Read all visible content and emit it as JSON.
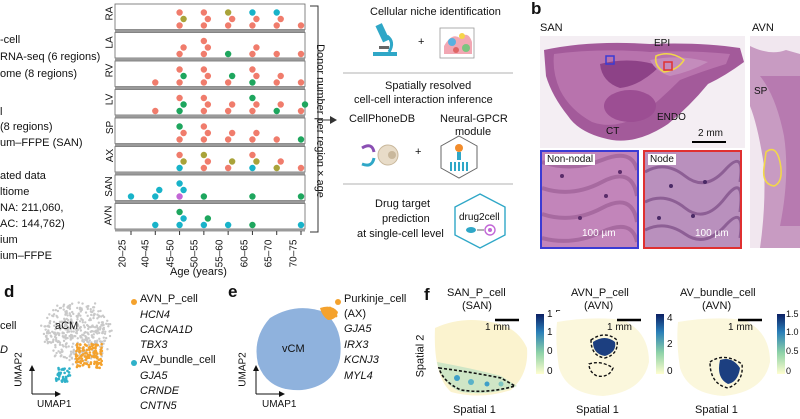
{
  "left_text": {
    "lines": [
      "-cell",
      "RNA-seq (6 regions)",
      "ome (8 regions)",
      "l",
      "(8 regions)",
      "um–FFPE (SAN)",
      "ated data",
      "ltiome",
      "NA: 211,060,",
      "AC: 144,762)",
      "ium",
      "ium–FFPE"
    ]
  },
  "panel_a": {
    "regions": [
      "RA",
      "LA",
      "RV",
      "LV",
      "SP",
      "AX",
      "SAN",
      "AVN"
    ],
    "age_groups": [
      "20–25",
      "40–45",
      "45–50",
      "50–55",
      "55–60",
      "60–65",
      "65–70",
      "70–75"
    ],
    "xlabel": "Age (years)",
    "ylabel": "Donor number per region × age",
    "dot_colors": {
      "salmon": "#f07c6c",
      "green": "#1ea65e",
      "teal": "#18b3c9",
      "olive": "#a9a33a",
      "purple": "#c267d6"
    }
  },
  "flow": {
    "step1": "Cellular niche identification",
    "step2_line1": "Spatially resolved",
    "step2_line2": "cell-cell interaction inference",
    "cellphonedb": "CellPhoneDB",
    "neural_line1": "Neural-GPCR",
    "neural_line2": "module",
    "step3_line1": "Drug target",
    "step3_line2": "prediction",
    "step3_line3": "at single-cell level",
    "drug2cell": "drug2cell",
    "plus": "+"
  },
  "panel_b": {
    "letter": "b",
    "san_title": "SAN",
    "avn_title": "AVN",
    "epi": "EPI",
    "ct": "CT",
    "endo": "ENDO",
    "sp": "SP",
    "scale_main": "2 mm",
    "nonnodal": "Non-nodal",
    "node": "Node",
    "scale_inset1": "100 µm",
    "scale_inset2": "100 µm"
  },
  "panel_d": {
    "letter": "d",
    "cut_text1": "cell",
    "cut_text2": "D",
    "cluster_label": "aCM",
    "legend1_title": "AVN_P_cell",
    "legend1_genes": [
      "HCN4",
      "CACNA1D",
      "TBX3"
    ],
    "legend2_title": "AV_bundle_cell",
    "legend2_genes": [
      "GJA5",
      "CRNDE",
      "CNTN5"
    ],
    "xaxis": "UMAP1",
    "yaxis": "UMAP2",
    "colors": {
      "orange": "#f4a22d",
      "teal": "#2fb1c9",
      "grey": "#c9c9c9"
    }
  },
  "panel_e": {
    "letter": "e",
    "cluster_label": "vCM",
    "legend_title1": "Purkinje_cell",
    "legend_title2": "(AX)",
    "genes": [
      "GJA5",
      "IRX3",
      "KCNJ3",
      "MYL4"
    ],
    "xaxis": "UMAP1",
    "yaxis": "UMAP2",
    "blob_color": "#8fb2dd"
  },
  "panel_f": {
    "letter": "f",
    "maps": [
      {
        "title1": "SAN_P_cell",
        "title2": "(SAN)",
        "scale": "1 mm",
        "ticks": [
          "1.5",
          "1.0",
          "0.5",
          "0"
        ]
      },
      {
        "title1": "AVN_P_cell",
        "title2": "(AVN)",
        "scale": "1 mm",
        "ticks": [
          "4",
          "2",
          "0"
        ]
      },
      {
        "title1": "AV_bundle_cell",
        "title2": "(AVN)",
        "scale": "1 mm",
        "ticks": [
          "1.5",
          "1.0",
          "0.5",
          "0"
        ]
      }
    ],
    "xlabel": "Spatial 1",
    "ylabel": "Spatial 2"
  },
  "dot_rows": [
    [
      null,
      null,
      [
        "salmon",
        "olive",
        "salmon"
      ],
      [
        "salmon",
        "salmon",
        "salmon"
      ],
      [
        "salmon",
        "salmon",
        "olive"
      ],
      [
        "salmon",
        "salmon",
        "teal"
      ],
      [
        "salmon",
        "salmon",
        "teal"
      ],
      [
        "salmon"
      ]
    ],
    [
      null,
      null,
      [
        "salmon",
        "salmon"
      ],
      [
        "salmon",
        "salmon",
        "salmon"
      ],
      [
        "green"
      ],
      [
        "salmon",
        "salmon"
      ],
      [
        "salmon"
      ],
      [
        "salmon"
      ]
    ],
    [
      null,
      [
        "salmon"
      ],
      [
        "salmon",
        "green",
        "salmon"
      ],
      [
        "salmon",
        "salmon",
        "salmon"
      ],
      [
        "salmon",
        "green"
      ],
      [
        "green",
        "salmon",
        "salmon"
      ],
      [
        "salmon",
        "salmon"
      ],
      [
        "salmon"
      ]
    ],
    [
      null,
      [
        "salmon"
      ],
      [
        "green",
        "green",
        "salmon"
      ],
      [
        "salmon",
        "salmon",
        "salmon"
      ],
      [
        "salmon",
        "salmon"
      ],
      [
        "salmon",
        "salmon",
        "green"
      ],
      [
        "green",
        "salmon"
      ],
      [
        "salmon",
        "green"
      ]
    ],
    [
      null,
      null,
      [
        "salmon",
        "salmon",
        "green"
      ],
      [
        "salmon",
        "salmon",
        "salmon"
      ],
      [
        "salmon",
        "salmon"
      ],
      [
        "salmon",
        "salmon"
      ],
      [
        "salmon"
      ],
      [
        "green"
      ]
    ],
    [
      null,
      null,
      [
        "teal",
        "olive",
        "salmon"
      ],
      [
        "salmon",
        "salmon",
        "olive"
      ],
      [
        "salmon",
        "olive"
      ],
      [
        "teal",
        "olive",
        "salmon"
      ],
      [
        "olive",
        "salmon"
      ],
      [
        "salmon"
      ]
    ],
    [
      [
        "teal"
      ],
      [
        "teal",
        "teal"
      ],
      [
        "purple",
        "teal",
        "teal"
      ],
      [
        "green"
      ],
      null,
      [
        "green"
      ],
      null,
      [
        "green"
      ]
    ],
    [
      null,
      [
        "teal"
      ],
      [
        "teal",
        "teal",
        "green"
      ],
      [
        "teal",
        "green"
      ],
      [
        "teal"
      ],
      [
        "green"
      ],
      null,
      [
        "teal"
      ]
    ]
  ]
}
